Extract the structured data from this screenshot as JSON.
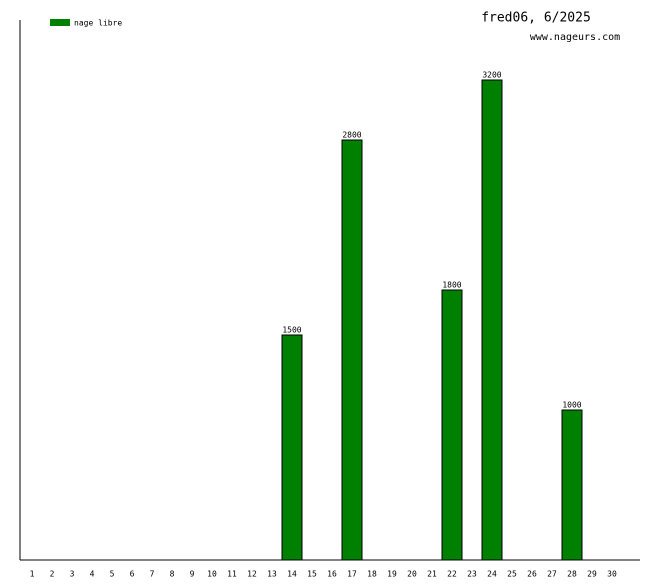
{
  "chart_data": {
    "type": "bar",
    "title": "fred06, 6/2025",
    "subtitle": "www.nageurs.com",
    "categories": [
      "1",
      "2",
      "3",
      "4",
      "5",
      "6",
      "7",
      "8",
      "9",
      "10",
      "11",
      "12",
      "13",
      "14",
      "15",
      "16",
      "17",
      "18",
      "19",
      "20",
      "21",
      "22",
      "23",
      "24",
      "25",
      "26",
      "27",
      "28",
      "29",
      "30"
    ],
    "series": [
      {
        "name": "nage libre",
        "color": "#008000",
        "values": [
          null,
          null,
          null,
          null,
          null,
          null,
          null,
          null,
          null,
          null,
          null,
          null,
          null,
          1500,
          null,
          null,
          2800,
          null,
          null,
          null,
          null,
          1800,
          null,
          3200,
          null,
          null,
          null,
          1000,
          null,
          null
        ]
      }
    ],
    "ylim": [
      0,
      3600
    ],
    "legend": "top-left"
  }
}
